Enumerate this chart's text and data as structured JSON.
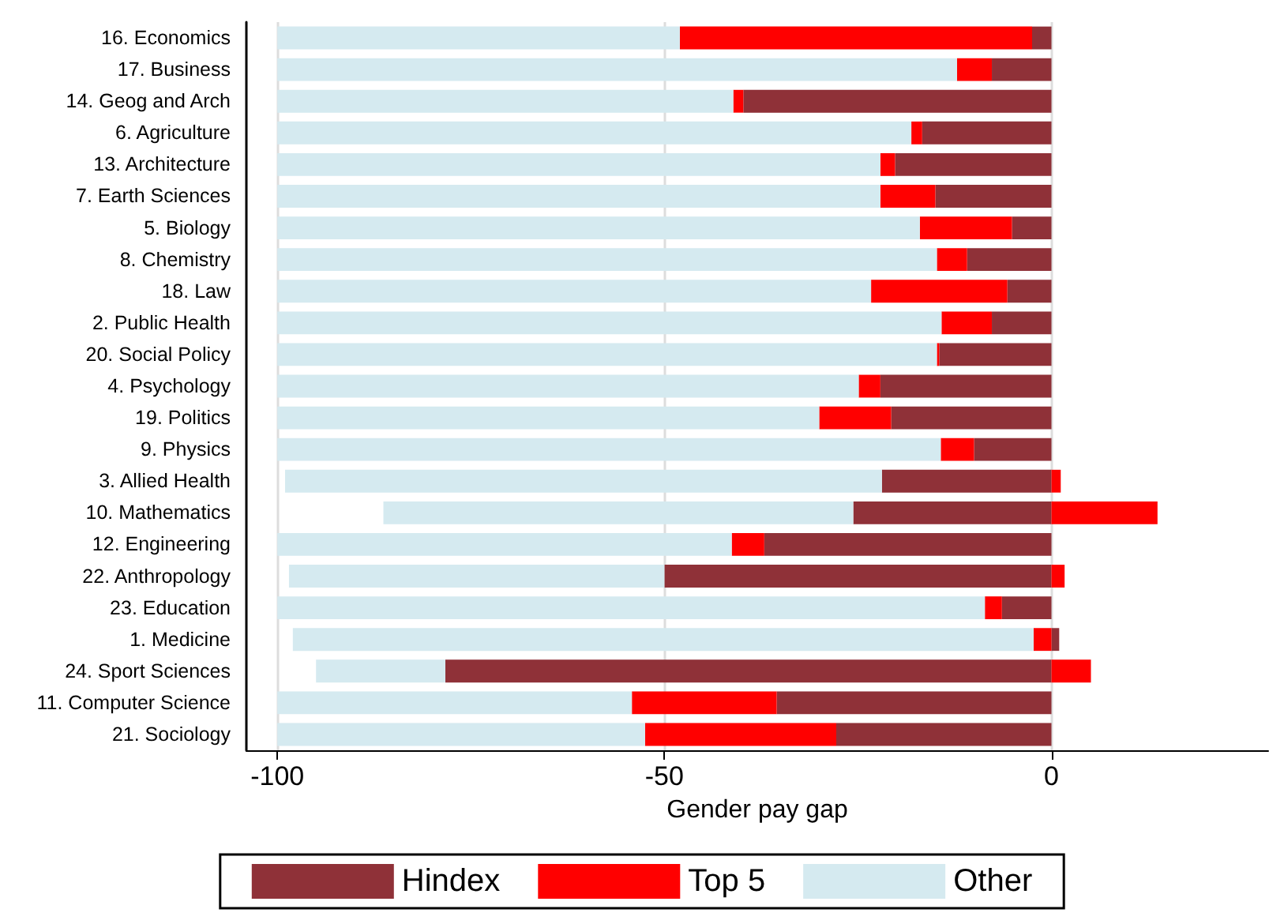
{
  "chart_data": {
    "type": "bar",
    "orientation": "horizontal",
    "stacked": true,
    "xlabel": "Gender pay gap",
    "categories": [
      "16. Economics",
      "17. Business",
      "14. Geog and Arch",
      "6. Agriculture",
      "13. Architecture",
      "7. Earth Sciences",
      "5. Biology",
      "8. Chemistry",
      "18. Law",
      "2. Public Health",
      "20. Social Policy",
      "4. Psychology",
      "19. Politics",
      "9. Physics",
      "3. Allied Health",
      "10. Mathematics",
      "12. Engineering",
      "22. Anthropology",
      "23. Education",
      "1. Medicine",
      "24. Sport Sciences",
      "11. Computer Science",
      "21. Sociology"
    ],
    "series": [
      {
        "name": "Hindex",
        "color": "#8f3138",
        "values": [
          -2.5,
          -7.7,
          -39.8,
          -16.7,
          -20.2,
          -15.0,
          -5.1,
          -10.9,
          -5.7,
          -7.7,
          -14.5,
          -22.1,
          -20.7,
          -10.0,
          -21.9,
          -25.6,
          -37.1,
          -50.0,
          -6.4,
          1.0,
          -78.3,
          -35.5,
          -27.8
        ]
      },
      {
        "name": "Top 5",
        "color": "#ff0000",
        "values": [
          -45.5,
          -4.5,
          -1.3,
          -1.4,
          -1.9,
          -7.1,
          -11.9,
          -3.9,
          -17.6,
          -6.5,
          -0.3,
          -2.8,
          -9.3,
          -4.3,
          1.2,
          13.7,
          -4.2,
          1.7,
          -2.2,
          -2.3,
          5.1,
          -18.7,
          -24.7
        ]
      },
      {
        "name": "Other",
        "color": "#d5eaf0",
        "values": [
          -52.0,
          -87.8,
          -58.9,
          -81.9,
          -77.9,
          -77.9,
          -83.0,
          -85.2,
          -76.7,
          -85.8,
          -85.2,
          -75.1,
          -70.0,
          -85.7,
          -77.1,
          -60.7,
          -58.7,
          -48.5,
          -91.4,
          -95.7,
          -16.7,
          -45.8,
          -47.5
        ]
      }
    ],
    "xlim": [
      -104,
      28
    ],
    "xticks": [
      -100,
      -50,
      0
    ],
    "grid": "x",
    "legend": "bottom"
  }
}
